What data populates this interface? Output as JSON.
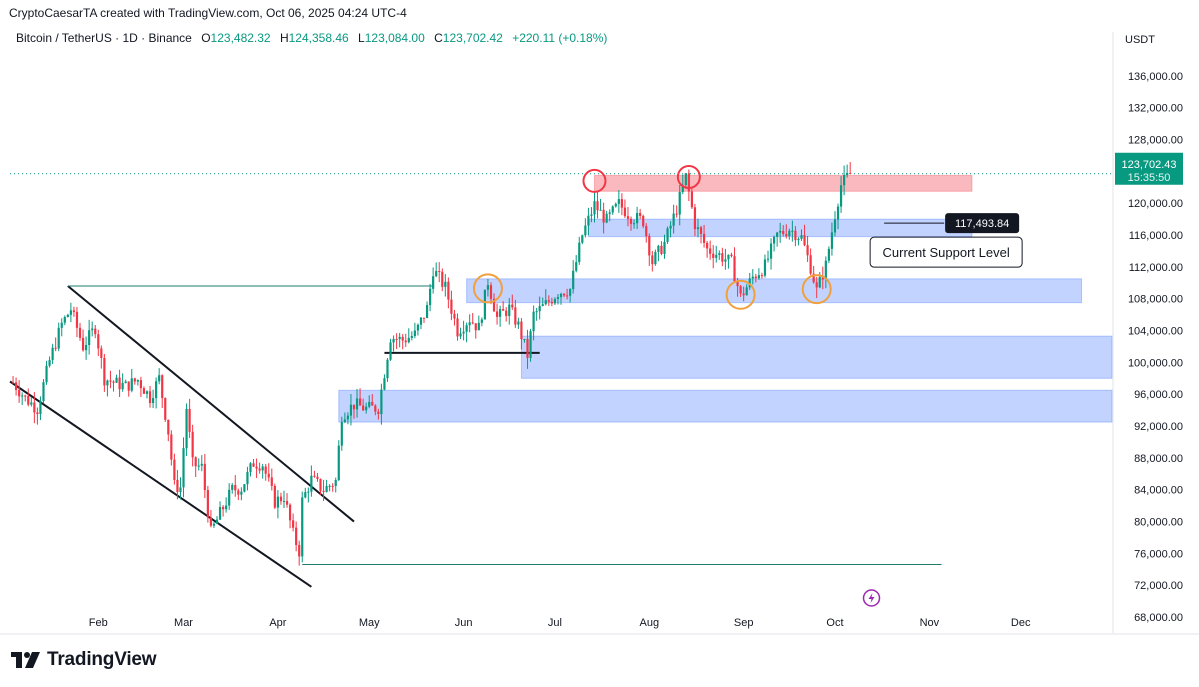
{
  "header": {
    "credit": "CryptoCaesarTA created with TradingView.com, Oct 06, 2025 04:24 UTC-4",
    "symbol": "Bitcoin / TetherUS · 1D · Binance",
    "open_label": "O",
    "open": "123,482.32",
    "high_label": "H",
    "high": "124,358.46",
    "low_label": "L",
    "low": "123,084.00",
    "close_label": "C",
    "close": "123,702.42",
    "change": "+220.11 (+0.18%)"
  },
  "brand": {
    "name": "TradingView",
    "icon": "tradingview-logo"
  },
  "colors": {
    "up": "#089981",
    "down": "#f23645",
    "zone_blue": "#2962ff",
    "zone_red": "#f23645",
    "circle_orange": "#f0a03c"
  },
  "chart_data": {
    "type": "candlestick",
    "currency": "USDT",
    "x_ticks": [
      "Feb",
      "Mar",
      "Apr",
      "May",
      "Jun",
      "Jul",
      "Aug",
      "Sep",
      "Oct",
      "Nov",
      "Dec"
    ],
    "y_ticks": [
      136000,
      132000,
      128000,
      124000,
      120000,
      116000,
      112000,
      108000,
      104000,
      100000,
      96000,
      92000,
      88000,
      84000,
      80000,
      76000,
      72000,
      68000
    ],
    "y_tick_labels": [
      "136,000.00",
      "132,000.00",
      "128,000.00",
      "124,000.00",
      "120,000.00",
      "116,000.00",
      "112,000.00",
      "108,000.00",
      "104,000.00",
      "100,000.00",
      "96,000.00",
      "92,000.00",
      "88,000.00",
      "84,000.00",
      "80,000.00",
      "76,000.00",
      "72,000.00",
      "68,000.00"
    ],
    "ylim": [
      66000,
      139000
    ],
    "last_price": 123702.43,
    "last_price_label": "123,702.43",
    "countdown": "15:35:50",
    "price_path": [
      {
        "date": "2025-01-04",
        "close": 97500
      },
      {
        "date": "2025-01-08",
        "close": 95500
      },
      {
        "date": "2025-01-12",
        "close": 94200
      },
      {
        "date": "2025-01-16",
        "close": 100200
      },
      {
        "date": "2025-01-20",
        "close": 104800
      },
      {
        "date": "2025-01-23",
        "close": 106700
      },
      {
        "date": "2025-01-27",
        "close": 102000
      },
      {
        "date": "2025-01-31",
        "close": 104400
      },
      {
        "date": "2025-02-03",
        "close": 98000
      },
      {
        "date": "2025-02-06",
        "close": 97500
      },
      {
        "date": "2025-02-10",
        "close": 97000
      },
      {
        "date": "2025-02-14",
        "close": 97800
      },
      {
        "date": "2025-02-18",
        "close": 95600
      },
      {
        "date": "2025-02-21",
        "close": 98000
      },
      {
        "date": "2025-02-24",
        "close": 91300
      },
      {
        "date": "2025-02-26",
        "close": 84500
      },
      {
        "date": "2025-02-28",
        "close": 84300
      },
      {
        "date": "2025-03-02",
        "close": 94300
      },
      {
        "date": "2025-03-04",
        "close": 87200
      },
      {
        "date": "2025-03-07",
        "close": 86800
      },
      {
        "date": "2025-03-10",
        "close": 78600
      },
      {
        "date": "2025-03-13",
        "close": 81000
      },
      {
        "date": "2025-03-17",
        "close": 84000
      },
      {
        "date": "2025-03-20",
        "close": 84200
      },
      {
        "date": "2025-03-24",
        "close": 87400
      },
      {
        "date": "2025-03-27",
        "close": 87200
      },
      {
        "date": "2025-03-31",
        "close": 82500
      },
      {
        "date": "2025-04-03",
        "close": 83200
      },
      {
        "date": "2025-04-06",
        "close": 78400
      },
      {
        "date": "2025-04-08",
        "close": 76300
      },
      {
        "date": "2025-04-09",
        "close": 82600
      },
      {
        "date": "2025-04-12",
        "close": 85300
      },
      {
        "date": "2025-04-16",
        "close": 84000
      },
      {
        "date": "2025-04-20",
        "close": 85100
      },
      {
        "date": "2025-04-22",
        "close": 93400
      },
      {
        "date": "2025-04-26",
        "close": 94700
      },
      {
        "date": "2025-04-30",
        "close": 94200
      },
      {
        "date": "2025-05-04",
        "close": 94300
      },
      {
        "date": "2025-05-08",
        "close": 103200
      },
      {
        "date": "2025-05-12",
        "close": 102800
      },
      {
        "date": "2025-05-16",
        "close": 103500
      },
      {
        "date": "2025-05-20",
        "close": 106800
      },
      {
        "date": "2025-05-22",
        "close": 111700
      },
      {
        "date": "2025-05-26",
        "close": 109400
      },
      {
        "date": "2025-05-30",
        "close": 104000
      },
      {
        "date": "2025-06-03",
        "close": 105500
      },
      {
        "date": "2025-06-06",
        "close": 104300
      },
      {
        "date": "2025-06-09",
        "close": 110200
      },
      {
        "date": "2025-06-12",
        "close": 105600
      },
      {
        "date": "2025-06-16",
        "close": 106800
      },
      {
        "date": "2025-06-19",
        "close": 104600
      },
      {
        "date": "2025-06-22",
        "close": 100900
      },
      {
        "date": "2025-06-24",
        "close": 106000
      },
      {
        "date": "2025-06-28",
        "close": 107300
      },
      {
        "date": "2025-07-02",
        "close": 108800
      },
      {
        "date": "2025-07-06",
        "close": 109200
      },
      {
        "date": "2025-07-10",
        "close": 116000
      },
      {
        "date": "2025-07-14",
        "close": 119800
      },
      {
        "date": "2025-07-18",
        "close": 117800
      },
      {
        "date": "2025-07-22",
        "close": 119900
      },
      {
        "date": "2025-07-26",
        "close": 118300
      },
      {
        "date": "2025-07-30",
        "close": 117800
      },
      {
        "date": "2025-08-02",
        "close": 112600
      },
      {
        "date": "2025-08-06",
        "close": 115000
      },
      {
        "date": "2025-08-10",
        "close": 119300
      },
      {
        "date": "2025-08-13",
        "close": 123300
      },
      {
        "date": "2025-08-16",
        "close": 117400
      },
      {
        "date": "2025-08-20",
        "close": 114200
      },
      {
        "date": "2025-08-24",
        "close": 113500
      },
      {
        "date": "2025-08-28",
        "close": 112500
      },
      {
        "date": "2025-08-31",
        "close": 108200
      },
      {
        "date": "2025-09-04",
        "close": 110700
      },
      {
        "date": "2025-09-08",
        "close": 112100
      },
      {
        "date": "2025-09-12",
        "close": 116000
      },
      {
        "date": "2025-09-16",
        "close": 116800
      },
      {
        "date": "2025-09-20",
        "close": 115700
      },
      {
        "date": "2025-09-23",
        "close": 112000
      },
      {
        "date": "2025-09-25",
        "close": 109000
      },
      {
        "date": "2025-09-28",
        "close": 112200
      },
      {
        "date": "2025-10-01",
        "close": 118600
      },
      {
        "date": "2025-10-03",
        "close": 122300
      },
      {
        "date": "2025-10-06",
        "close": 123700
      }
    ],
    "zones": [
      {
        "kind": "resistance",
        "from": "2025-07-14",
        "to": "2025-11-15",
        "low": 121500,
        "high": 123500,
        "color": "#f23645"
      },
      {
        "kind": "support",
        "from": "2025-07-12",
        "to": "2025-11-15",
        "low": 115800,
        "high": 118000,
        "color": "#2962ff"
      },
      {
        "kind": "support",
        "from": "2025-06-02",
        "to": "2025-12-21",
        "low": 107500,
        "high": 110500,
        "color": "#2962ff"
      },
      {
        "kind": "support",
        "from": "2025-06-20",
        "to": "2025-12-31",
        "low": 98000,
        "high": 103300,
        "color": "#2962ff"
      },
      {
        "kind": "support",
        "from": "2025-04-21",
        "to": "2025-12-31",
        "low": 92500,
        "high": 96500,
        "color": "#2962ff"
      }
    ],
    "channel": {
      "upper": [
        {
          "date": "2025-01-22",
          "price": 109600
        },
        {
          "date": "2025-04-26",
          "price": 80000
        }
      ],
      "lower": [
        {
          "date": "2025-01-03",
          "price": 97600
        },
        {
          "date": "2025-04-12",
          "price": 71800
        }
      ]
    },
    "horizontal_lines": [
      {
        "kind": "range-high",
        "from": "2025-01-22",
        "to": "2025-05-22",
        "price": 109600
      },
      {
        "kind": "range-low",
        "from": "2025-04-09",
        "to": "2025-11-05",
        "price": 74600
      },
      {
        "kind": "neckline",
        "from": "2025-05-06",
        "to": "2025-06-26",
        "price": 101200
      }
    ],
    "circles_red": [
      {
        "date": "2025-07-14",
        "price": 122800
      },
      {
        "date": "2025-08-14",
        "price": 123300
      }
    ],
    "circles_orange": [
      {
        "date": "2025-06-09",
        "price": 109300
      },
      {
        "date": "2025-08-31",
        "price": 108500
      },
      {
        "date": "2025-09-25",
        "price": 109200
      }
    ],
    "annotation": {
      "price_label": "117,493.84",
      "text": "Current Support Level",
      "date": "2025-10-27",
      "price": 117493.84
    }
  }
}
